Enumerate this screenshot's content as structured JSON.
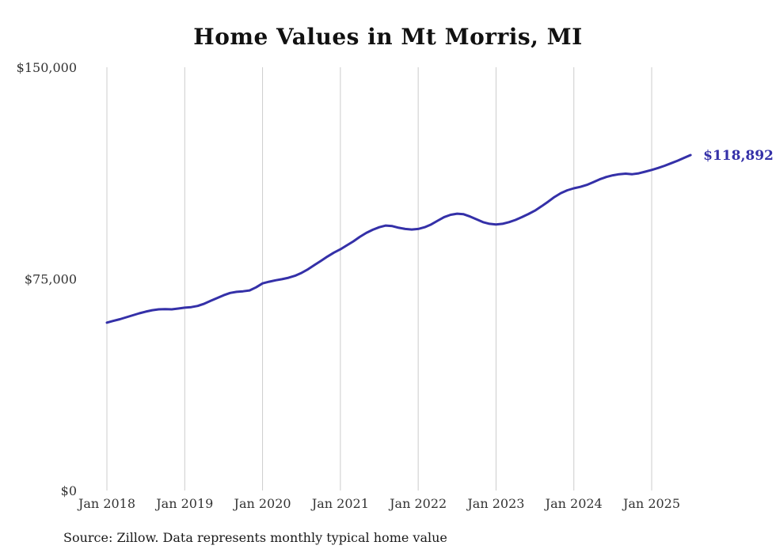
{
  "page": {
    "source_note": "Source: Zillow. Data represents monthly typical home value"
  },
  "chart_data": {
    "type": "line",
    "title": "Home Values in Mt Morris, MI",
    "series_name": "Monthly typical home value",
    "end_label": "$118,892",
    "xlabel": "",
    "ylabel": "",
    "ylim": [
      0,
      150000
    ],
    "grid": "vertical-only",
    "legend": "none",
    "line_color": "#3430a8",
    "grid_color": "#cccccc",
    "y_ticks": [
      {
        "value": 0,
        "label": "$0"
      },
      {
        "value": 75000,
        "label": "$75,000"
      },
      {
        "value": 150000,
        "label": "$150,000"
      }
    ],
    "x_ticks": [
      {
        "month_index": 0,
        "label": "Jan 2018"
      },
      {
        "month_index": 12,
        "label": "Jan 2019"
      },
      {
        "month_index": 24,
        "label": "Jan 2020"
      },
      {
        "month_index": 36,
        "label": "Jan 2021"
      },
      {
        "month_index": 48,
        "label": "Jan 2022"
      },
      {
        "month_index": 60,
        "label": "Jan 2023"
      },
      {
        "month_index": 72,
        "label": "Jan 2024"
      },
      {
        "month_index": 84,
        "label": "Jan 2025"
      }
    ],
    "x": [
      "2018-01",
      "2018-02",
      "2018-03",
      "2018-04",
      "2018-05",
      "2018-06",
      "2018-07",
      "2018-08",
      "2018-09",
      "2018-10",
      "2018-11",
      "2018-12",
      "2019-01",
      "2019-02",
      "2019-03",
      "2019-04",
      "2019-05",
      "2019-06",
      "2019-07",
      "2019-08",
      "2019-09",
      "2019-10",
      "2019-11",
      "2019-12",
      "2020-01",
      "2020-02",
      "2020-03",
      "2020-04",
      "2020-05",
      "2020-06",
      "2020-07",
      "2020-08",
      "2020-09",
      "2020-10",
      "2020-11",
      "2020-12",
      "2021-01",
      "2021-02",
      "2021-03",
      "2021-04",
      "2021-05",
      "2021-06",
      "2021-07",
      "2021-08",
      "2021-09",
      "2021-10",
      "2021-11",
      "2021-12",
      "2022-01",
      "2022-02",
      "2022-03",
      "2022-04",
      "2022-05",
      "2022-06",
      "2022-07",
      "2022-08",
      "2022-09",
      "2022-10",
      "2022-11",
      "2022-12",
      "2023-01",
      "2023-02",
      "2023-03",
      "2023-04",
      "2023-05",
      "2023-06",
      "2023-07",
      "2023-08",
      "2023-09",
      "2023-10",
      "2023-11",
      "2023-12",
      "2024-01",
      "2024-02",
      "2024-03",
      "2024-04",
      "2024-05",
      "2024-06",
      "2024-07",
      "2024-08",
      "2024-09",
      "2024-10",
      "2024-11",
      "2024-12",
      "2025-01",
      "2025-02",
      "2025-03",
      "2025-04",
      "2025-05",
      "2025-06",
      "2025-07"
    ],
    "values": [
      59500,
      60100,
      60700,
      61400,
      62100,
      62800,
      63400,
      63900,
      64200,
      64300,
      64200,
      64500,
      64800,
      65000,
      65400,
      66200,
      67200,
      68200,
      69200,
      70000,
      70400,
      70600,
      70900,
      72000,
      73400,
      74000,
      74500,
      74900,
      75400,
      76100,
      77100,
      78400,
      79900,
      81400,
      82900,
      84300,
      85500,
      86900,
      88300,
      89900,
      91300,
      92400,
      93300,
      93900,
      93700,
      93100,
      92700,
      92500,
      92700,
      93300,
      94300,
      95600,
      96900,
      97700,
      98100,
      97900,
      97100,
      96100,
      95100,
      94500,
      94300,
      94500,
      95100,
      95900,
      96900,
      98000,
      99200,
      100700,
      102300,
      104000,
      105400,
      106400,
      107100,
      107600,
      108300,
      109300,
      110300,
      111100,
      111700,
      112100,
      112300,
      112100,
      112400,
      113000,
      113600,
      114300,
      115100,
      116000,
      116900,
      117900,
      118892
    ]
  }
}
